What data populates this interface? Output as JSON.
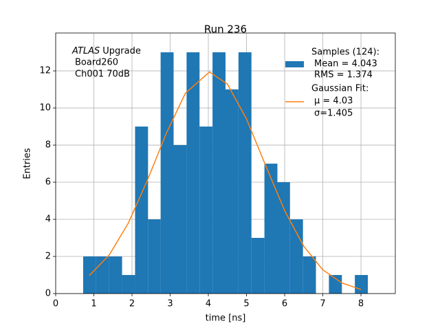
{
  "chart_data": {
    "type": "histogram",
    "title": "Run 236",
    "xlabel": "time [ns]",
    "ylabel": "Entries",
    "bins": [
      0.72,
      1.06,
      1.4,
      1.74,
      2.08,
      2.42,
      2.75,
      3.09,
      3.43,
      3.77,
      4.11,
      4.45,
      4.79,
      5.13,
      5.47,
      5.81,
      6.14,
      6.48,
      6.82,
      7.16,
      7.5,
      7.84,
      8.18
    ],
    "values": [
      2,
      2,
      2,
      1,
      9,
      4,
      13,
      8,
      13,
      9,
      13,
      11,
      13,
      3,
      7,
      6,
      4,
      2,
      0,
      1,
      0,
      1
    ],
    "color": "#1f77b4",
    "name": "Samples (124):",
    "details": [
      "Mean = 4.043",
      "RMS = 1.374"
    ],
    "fit": {
      "type": "line",
      "name": "Gaussian Fit:",
      "details": [
        "μ = 4.03",
        "σ=1.405"
      ],
      "color": "#ff7f0e",
      "x": [
        0.88,
        1.4,
        1.9,
        2.4,
        2.9,
        3.4,
        4.03,
        4.5,
        5.0,
        5.5,
        6.0,
        6.5,
        7.0,
        7.5,
        8.0
      ],
      "values": [
        0.97,
        2.07,
        3.78,
        6.09,
        8.64,
        10.8,
        11.94,
        11.29,
        9.41,
        6.91,
        4.47,
        2.55,
        1.28,
        0.57,
        0.22
      ]
    },
    "annotation": {
      "emphasis": "ATLAS",
      "lines": [
        "Upgrade",
        "Board260",
        "Ch001 70dB"
      ]
    },
    "xlim": [
      0,
      8.9
    ],
    "ylim": [
      0,
      14.04
    ],
    "xticks": [
      0,
      1,
      2,
      3,
      4,
      5,
      6,
      7,
      8
    ],
    "yticks": [
      0,
      2,
      4,
      6,
      8,
      10,
      12
    ],
    "grid": true,
    "legend": "upper right"
  }
}
